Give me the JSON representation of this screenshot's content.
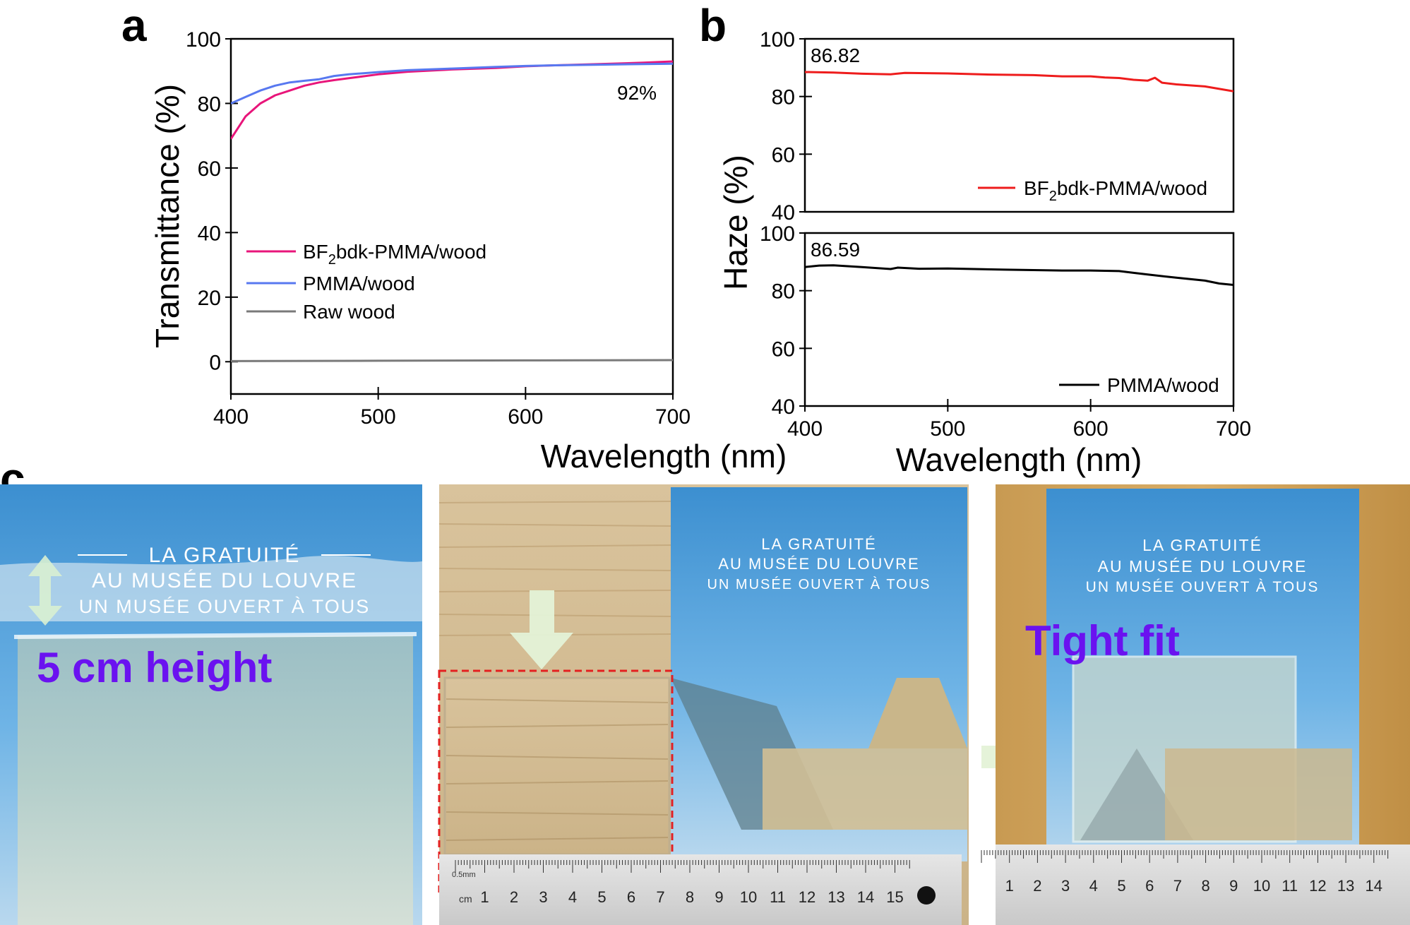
{
  "panels": {
    "a": {
      "letter": "a"
    },
    "b": {
      "letter": "b"
    },
    "c": {
      "letter": "c"
    }
  },
  "chart_data": [
    {
      "id": "a",
      "type": "line",
      "title": "",
      "xlabel": "Wavelength (nm)",
      "ylabel": "Transmittance (%)",
      "xlim": [
        400,
        700
      ],
      "ylim": [
        -10,
        100
      ],
      "xticks": [
        400,
        500,
        600,
        700
      ],
      "yticks": [
        0,
        20,
        40,
        60,
        80,
        100
      ],
      "legend_position": "center-left",
      "annotation": "92%",
      "series": [
        {
          "name": "BF",
          "name_sub": "2",
          "name_rest": "bdk-PMMA/wood",
          "color": "#e8157a",
          "x": [
            400,
            405,
            410,
            420,
            430,
            440,
            450,
            460,
            470,
            480,
            500,
            520,
            550,
            580,
            600,
            620,
            650,
            680,
            700
          ],
          "y": [
            69,
            72.5,
            76,
            80,
            82.5,
            84,
            85.5,
            86.5,
            87.2,
            87.8,
            89,
            89.8,
            90.5,
            91,
            91.5,
            91.8,
            92.2,
            92.6,
            93
          ]
        },
        {
          "name": "PMMA/wood",
          "color": "#5878f0",
          "x": [
            400,
            410,
            420,
            430,
            440,
            450,
            460,
            470,
            480,
            500,
            520,
            550,
            580,
            600,
            620,
            650,
            680,
            700
          ],
          "y": [
            80,
            82,
            84,
            85.5,
            86.5,
            87,
            87.5,
            88.5,
            89,
            89.7,
            90.3,
            90.8,
            91.3,
            91.6,
            91.8,
            92,
            92.2,
            92.3
          ]
        },
        {
          "name": "Raw wood",
          "color": "#7a7a7a",
          "x": [
            400,
            500,
            600,
            700
          ],
          "y": [
            0.2,
            0.3,
            0.4,
            0.5
          ]
        }
      ]
    },
    {
      "id": "b-top",
      "type": "line",
      "xlabel": "",
      "ylabel": "Haze (%)",
      "xlim": [
        400,
        700
      ],
      "ylim": [
        40,
        100
      ],
      "yticks": [
        40,
        60,
        80,
        100
      ],
      "annotation": "86.82",
      "legend_position": "bottom-right",
      "series": [
        {
          "name": "BF",
          "name_sub": "2",
          "name_rest": "bdk-PMMA/wood",
          "color": "#ee1c1c",
          "x": [
            400,
            420,
            440,
            460,
            470,
            500,
            530,
            560,
            580,
            600,
            610,
            620,
            630,
            640,
            645,
            650,
            660,
            680,
            700
          ],
          "y": [
            88.5,
            88.3,
            87.9,
            87.7,
            88.2,
            88,
            87.6,
            87.4,
            87,
            87,
            86.6,
            86.4,
            85.8,
            85.5,
            86.5,
            84.8,
            84.2,
            83.5,
            81.8
          ]
        }
      ]
    },
    {
      "id": "b-bottom",
      "type": "line",
      "xlabel": "Wavelength (nm)",
      "ylabel": "",
      "xlim": [
        400,
        700
      ],
      "ylim": [
        40,
        100
      ],
      "xticks": [
        400,
        500,
        600,
        700
      ],
      "yticks": [
        40,
        60,
        80,
        100
      ],
      "annotation": "86.59",
      "legend_position": "bottom-right",
      "series": [
        {
          "name": "PMMA/wood",
          "color": "#000000",
          "x": [
            400,
            410,
            420,
            440,
            460,
            465,
            480,
            500,
            540,
            580,
            600,
            620,
            630,
            640,
            660,
            680,
            690,
            700
          ],
          "y": [
            88.2,
            88.7,
            88.8,
            88.2,
            87.5,
            88,
            87.6,
            87.7,
            87.3,
            87,
            87,
            86.8,
            86.2,
            85.6,
            84.5,
            83.5,
            82.5,
            82
          ]
        }
      ]
    }
  ],
  "photos": {
    "left": {
      "label": "5 cm height",
      "card_line1": "LA GRATUITÉ",
      "card_line2": "AU MUSÉE DU LOUVRE",
      "card_line3": "UN MUSÉE OUVERT À TOUS"
    },
    "middle": {
      "card_line1": "LA GRATUITÉ",
      "card_line2": "AU MUSÉE DU LOUVRE",
      "card_line3": "UN MUSÉE OUVERT À TOUS",
      "ruler_unit": "cm",
      "ruler_mm": "0.5mm",
      "ruler_numbers": [
        "1",
        "2",
        "3",
        "4",
        "5",
        "6",
        "7",
        "8",
        "9",
        "10",
        "11",
        "12",
        "13",
        "14",
        "15"
      ]
    },
    "right": {
      "label": "Tight fit",
      "card_line1": "LA GRATUITÉ",
      "card_line2": "AU MUSÉE DU LOUVRE",
      "card_line3": "UN MUSÉE OUVERT À TOUS",
      "ruler_numbers": [
        "1",
        "2",
        "3",
        "4",
        "5",
        "6",
        "7",
        "8",
        "9",
        "10",
        "11",
        "12",
        "13",
        "14"
      ]
    }
  }
}
